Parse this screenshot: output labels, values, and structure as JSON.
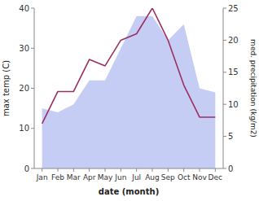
{
  "chart_data": {
    "type": "area",
    "categories": [
      "Jan",
      "Feb",
      "Mar",
      "Apr",
      "May",
      "Jun",
      "Jul",
      "Aug",
      "Sep",
      "Oct",
      "Nov",
      "Dec"
    ],
    "series": [
      {
        "type": "area",
        "color": "#c5cdf5",
        "values": [
          15,
          14,
          16,
          22,
          22,
          30,
          38,
          38,
          32,
          36,
          20,
          19
        ]
      },
      {
        "type": "line",
        "color": "#9b3060",
        "axis": "y2",
        "values": [
          7,
          12,
          12,
          17,
          16,
          20,
          21,
          25,
          20,
          13,
          8,
          8
        ]
      }
    ],
    "x_label": "date (month)",
    "y_label": "max temp (C)",
    "y2_label": "med. precipitation (kg/m2)",
    "ylim": [
      0,
      40
    ],
    "yticks": [
      0,
      10,
      20,
      30,
      40
    ],
    "y2lim": [
      0,
      25
    ],
    "y2ticks": [
      0,
      5,
      10,
      15,
      20,
      25
    ],
    "grid": false
  }
}
